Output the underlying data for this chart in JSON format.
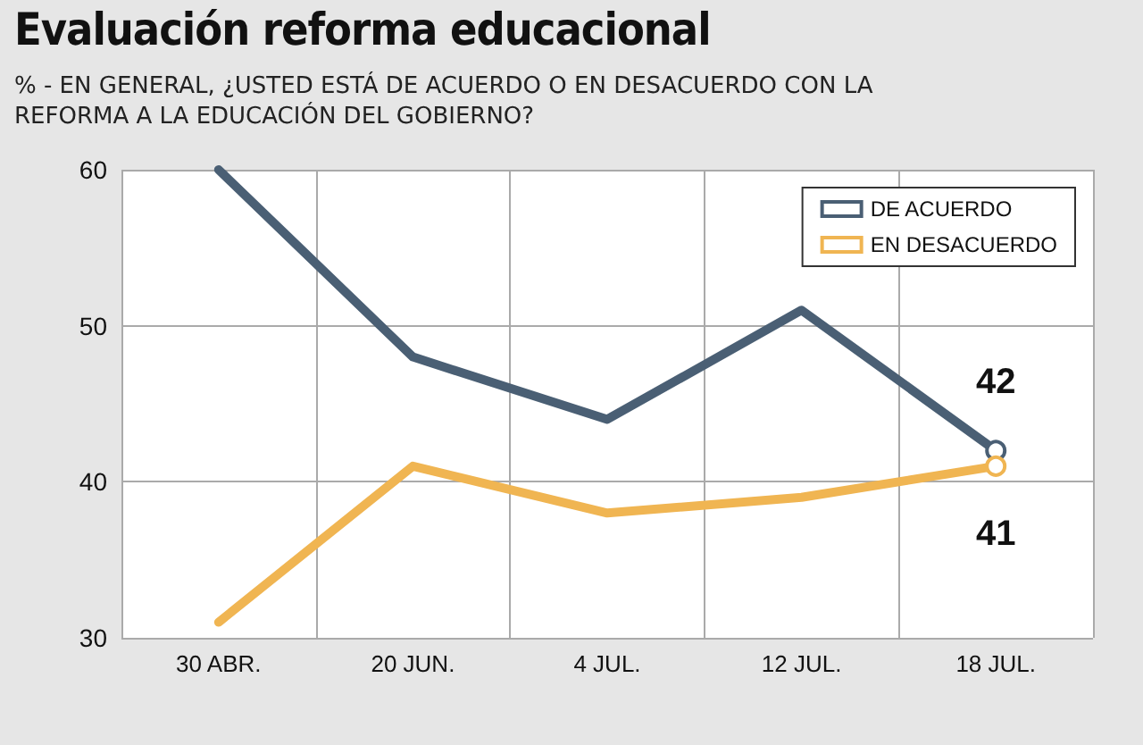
{
  "chart_data": {
    "type": "line",
    "title": "Evaluación reforma educacional",
    "subtitle": "% - EN GENERAL, ¿USTED ESTÁ DE ACUERDO O EN DESACUERDO CON LA REFORMA A LA EDUCACIÓN DEL GOBIERNO?",
    "categories": [
      "30 ABR.",
      "20 JUN.",
      "4 JUL.",
      "12 JUL.",
      "18 JUL."
    ],
    "series": [
      {
        "name": "DE ACUERDO",
        "color": "#4a5f74",
        "values": [
          60,
          48,
          44,
          51,
          42
        ],
        "value_labels": [
          null,
          null,
          null,
          null,
          "42"
        ]
      },
      {
        "name": "EN DESACUERDO",
        "color": "#f0b552",
        "values": [
          31,
          41,
          38,
          39,
          41
        ],
        "value_labels": [
          null,
          null,
          null,
          null,
          "41"
        ]
      }
    ],
    "ylim": [
      30,
      60
    ],
    "yticks": [
      30,
      40,
      50,
      60
    ],
    "grid": true,
    "legend": "top right",
    "marker": "none",
    "line_style": "solid"
  }
}
